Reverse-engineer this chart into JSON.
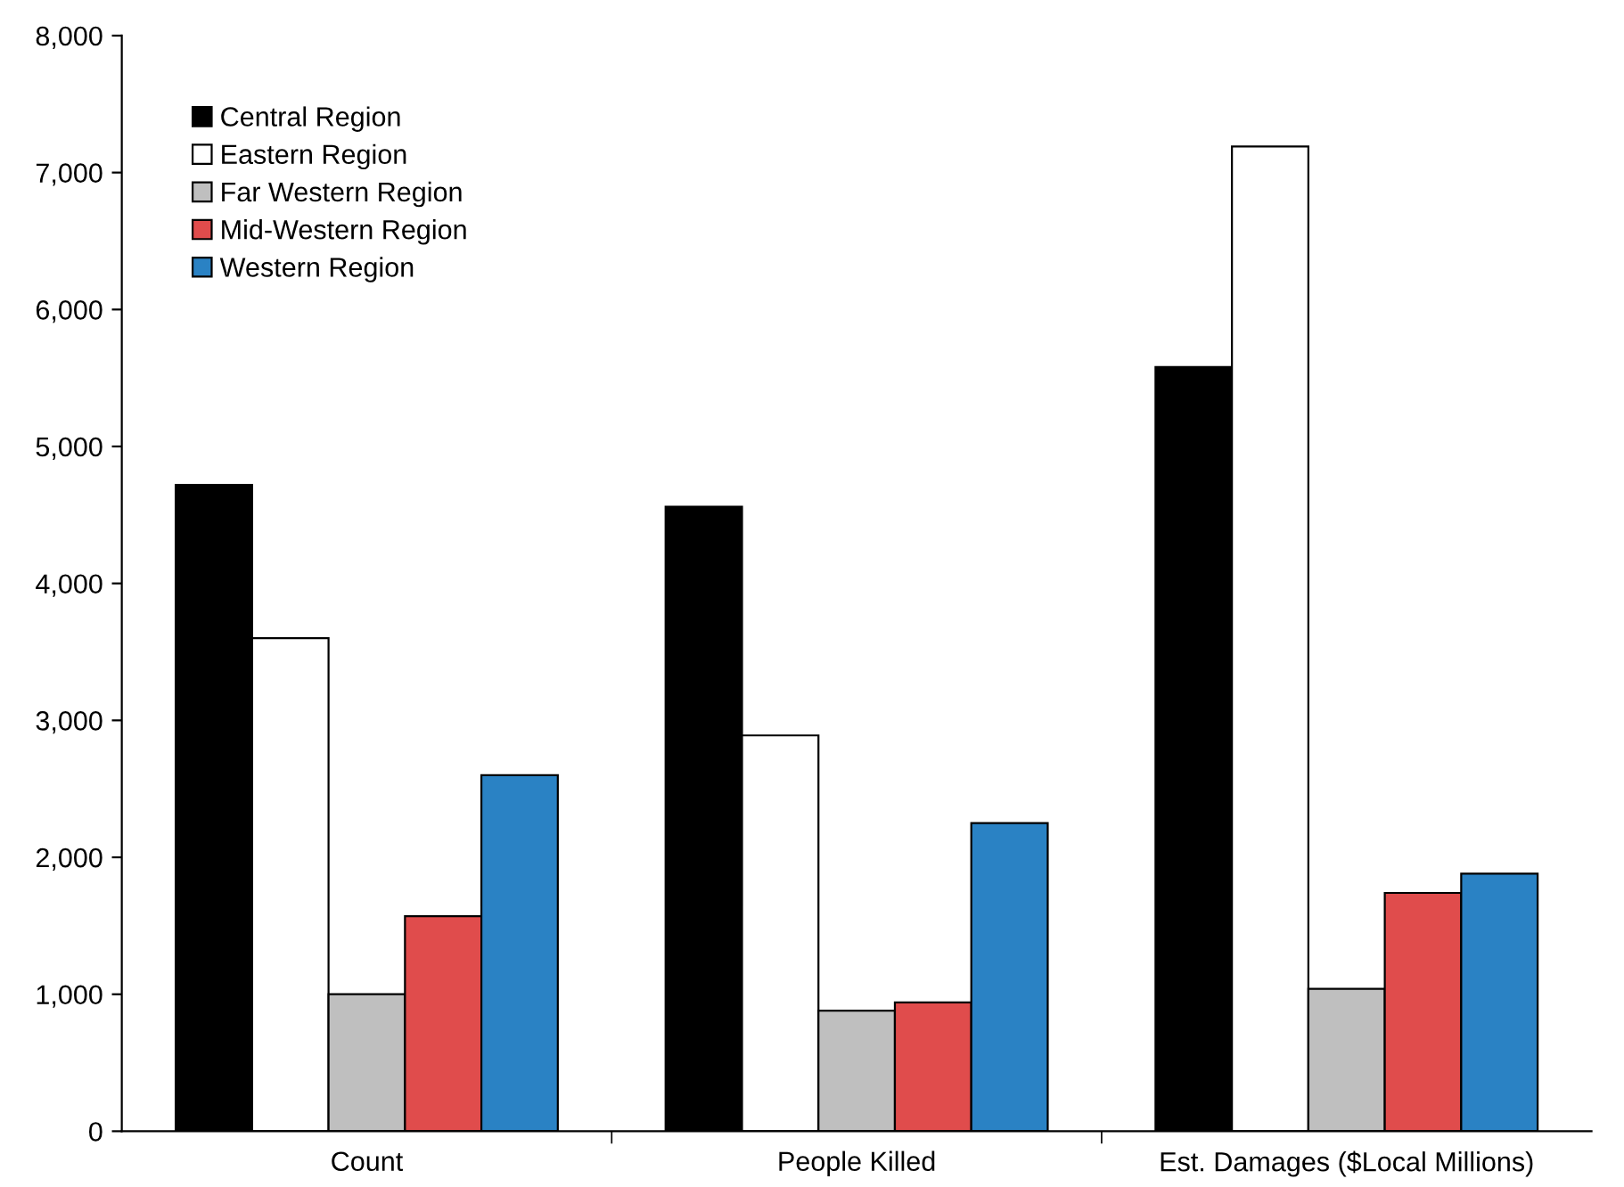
{
  "chart_data": {
    "type": "bar",
    "categories": [
      "Count",
      "People Killed",
      "Est. Damages ($Local Millions)"
    ],
    "series": [
      {
        "name": "Central Region",
        "color": "#000000",
        "values": [
          4720,
          4560,
          5580
        ]
      },
      {
        "name": "Eastern Region",
        "color": "#ffffff",
        "values": [
          3600,
          2890,
          7190
        ]
      },
      {
        "name": "Far Western Region",
        "color": "#bfbfbf",
        "values": [
          1000,
          880,
          1040
        ]
      },
      {
        "name": "Mid-Western Region",
        "color": "#e04c4c",
        "values": [
          1570,
          940,
          1740
        ]
      },
      {
        "name": "Western Region",
        "color": "#2a82c4",
        "values": [
          2600,
          2250,
          1880
        ]
      }
    ],
    "ylim": [
      0,
      8000
    ],
    "yticks": [
      0,
      {
        "value": 1000,
        "label": "1,000"
      },
      {
        "value": 2000,
        "label": "2,000"
      },
      {
        "value": 3000,
        "label": "3,000"
      },
      {
        "value": 4000,
        "label": "4,000"
      },
      {
        "value": 5000,
        "label": "5,000"
      },
      {
        "value": 6000,
        "label": "6,000"
      },
      {
        "value": 7000,
        "label": "7,000"
      },
      {
        "value": 8000,
        "label": "8,000"
      }
    ],
    "grid": false,
    "legend": "top left"
  }
}
